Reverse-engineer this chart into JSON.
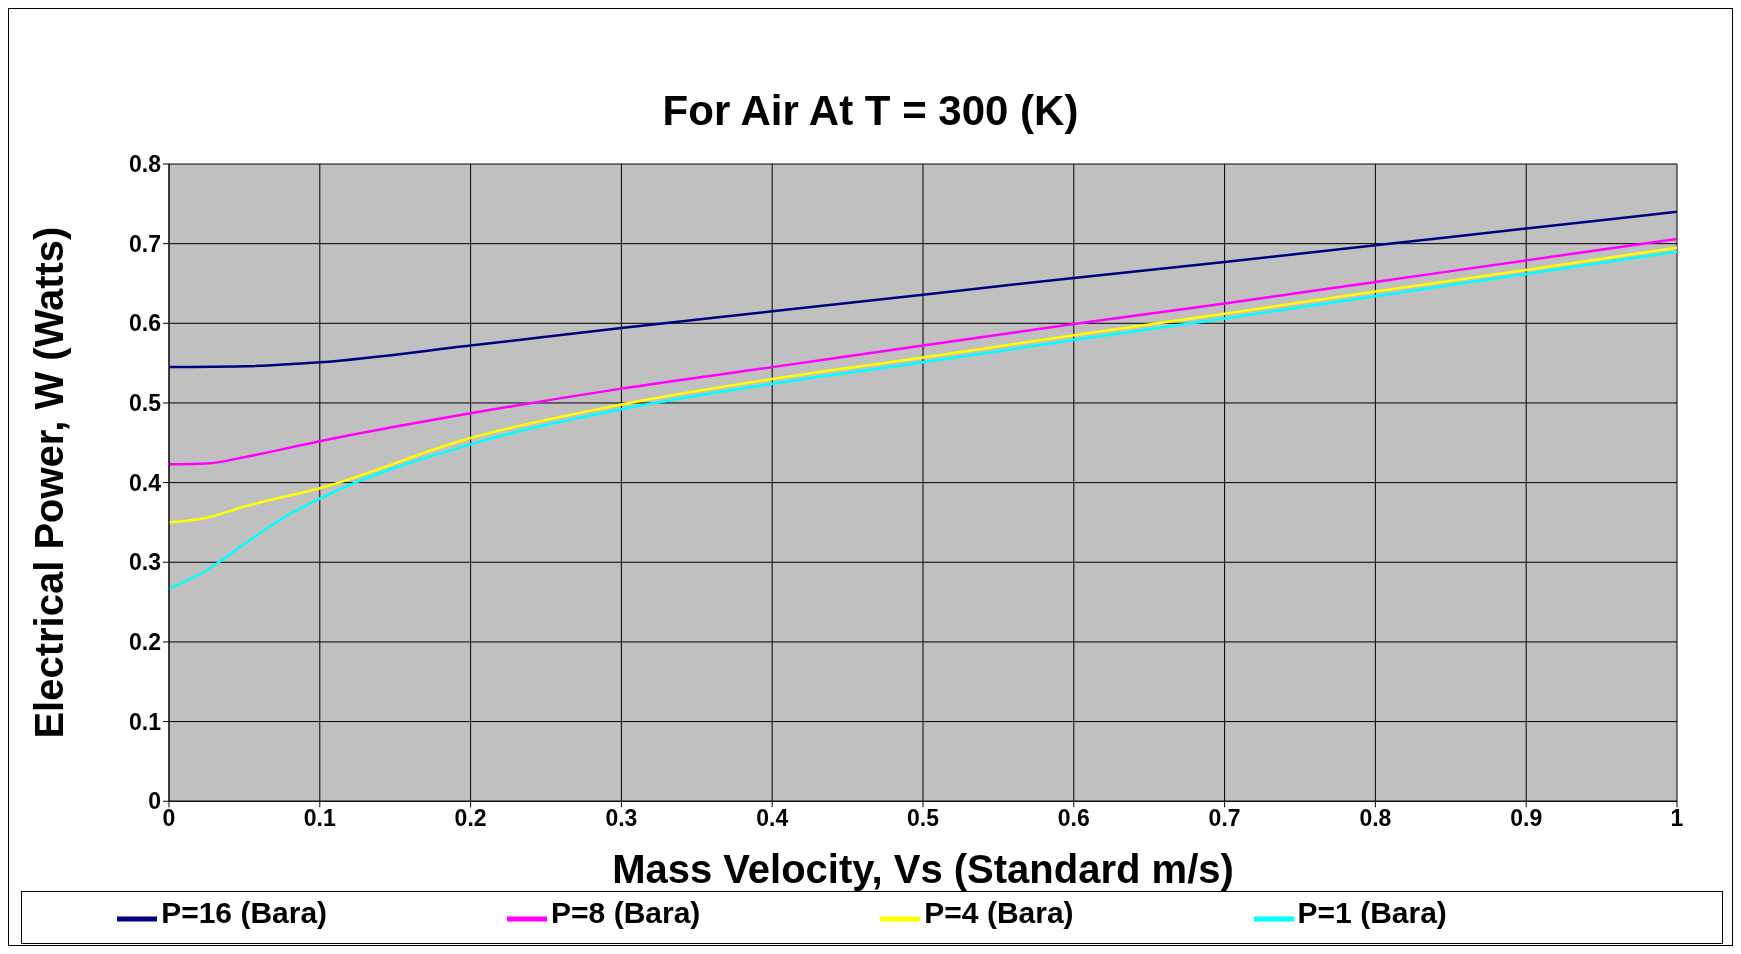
{
  "chart_data": {
    "type": "line",
    "title": "For Air At T = 300 (K)",
    "xlabel": "Mass Velocity, Vs  (Standard m/s)",
    "ylabel": "Electrical Power, W  (Watts)",
    "xlim": [
      0,
      1
    ],
    "xticks": [
      0,
      0.1,
      0.2,
      0.3,
      0.4,
      0.5,
      0.6,
      0.7,
      0.8,
      0.9,
      1
    ],
    "ylim": [
      0,
      0.8
    ],
    "yticks": [
      0,
      0.1,
      0.2,
      0.3,
      0.4,
      0.5,
      0.6,
      0.7,
      0.8
    ],
    "grid": true,
    "legend": "bottom",
    "marker": "none",
    "line_style": "solid",
    "series": [
      {
        "name": "P=16 (Bara)",
        "color": "#000080",
        "x": [
          0,
          0.05,
          0.1,
          0.2,
          0.3,
          0.4,
          0.5,
          0.6,
          0.7,
          0.8,
          0.9,
          1
        ],
        "values": [
          0.545,
          0.546,
          0.551,
          0.572,
          0.594,
          0.615,
          0.636,
          0.657,
          0.677,
          0.698,
          0.719,
          0.74
        ]
      },
      {
        "name": "P=8 (Bara)",
        "color": "#ff00ff",
        "x": [
          0,
          0.025,
          0.05,
          0.1,
          0.2,
          0.3,
          0.4,
          0.5,
          0.6,
          0.7,
          0.8,
          0.9,
          1
        ],
        "values": [
          0.423,
          0.424,
          0.432,
          0.452,
          0.487,
          0.518,
          0.545,
          0.572,
          0.599,
          0.625,
          0.652,
          0.679,
          0.706
        ]
      },
      {
        "name": "P=4 (Bara)",
        "color": "#ffff00",
        "x": [
          0,
          0.025,
          0.05,
          0.1,
          0.2,
          0.3,
          0.4,
          0.5,
          0.6,
          0.7,
          0.8,
          0.9,
          1
        ],
        "values": [
          0.35,
          0.356,
          0.37,
          0.393,
          0.456,
          0.498,
          0.53,
          0.557,
          0.585,
          0.612,
          0.64,
          0.667,
          0.695
        ]
      },
      {
        "name": "P=1 (Bara)",
        "color": "#00ffff",
        "x": [
          0,
          0.025,
          0.05,
          0.075,
          0.1,
          0.2,
          0.3,
          0.4,
          0.5,
          0.6,
          0.7,
          0.8,
          0.9,
          1
        ],
        "values": [
          0.267,
          0.29,
          0.323,
          0.355,
          0.38,
          0.448,
          0.492,
          0.524,
          0.551,
          0.579,
          0.606,
          0.634,
          0.662,
          0.69
        ]
      }
    ]
  }
}
